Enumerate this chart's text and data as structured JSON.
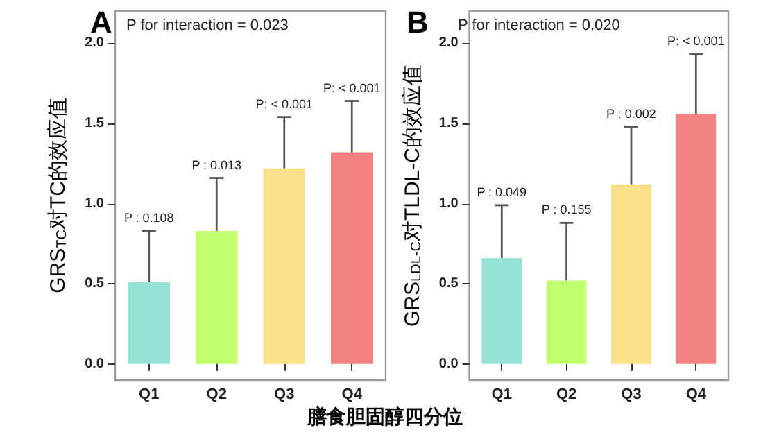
{
  "chart_data": [
    {
      "type": "bar",
      "title": "A",
      "ylabel": "GRS$_{TC}$对TC的效应值",
      "xlabel": "膳食胆固醇四分位",
      "categories": [
        "Q1",
        "Q2",
        "Q3",
        "Q4"
      ],
      "values": [
        0.51,
        0.83,
        1.22,
        1.32
      ],
      "colors": [
        "#95e1d3",
        "#c1ff6f",
        "#fbe08a",
        "#f38181"
      ],
      "errors": [
        [
          0.51,
          0.83
        ],
        [
          0.83,
          1.16
        ],
        [
          1.22,
          1.54
        ],
        [
          1.32,
          1.64
        ]
      ],
      "ylim": [
        -0.1,
        2.2
      ],
      "yticks": [
        {
          "value": 0,
          "label": "0.0"
        },
        {
          "value": 0.5,
          "label": "0.5"
        },
        {
          "value": 1,
          "label": "1.0"
        },
        {
          "value": 1.5,
          "label": "1.5"
        },
        {
          "value": 2,
          "label": "2.0"
        }
      ],
      "annotations": [
        "P for interaction = 0.023",
        {
          "text": "P : 0.108",
          "x": "Q1",
          "y": 0.83
        },
        {
          "text": "P : 0.013",
          "x": "Q2",
          "y": 1.16
        },
        {
          "text": "P: < 0.001",
          "x": "Q3",
          "y": 1.54
        },
        {
          "text": "P: < 0.001",
          "x": "Q4",
          "y": 1.64
        }
      ]
    },
    {
      "type": "bar",
      "title": "B",
      "ylabel": "GRS$_{LDL-C}$对TLDL-C的效应值",
      "categories": [
        "Q1",
        "Q2",
        "Q3",
        "Q4"
      ],
      "values": [
        0.66,
        0.52,
        1.12,
        1.56
      ],
      "colors": [
        "#95e1d3",
        "#c1ff6f",
        "#fbe08a",
        "#f38181"
      ],
      "errors": [
        [
          0.66,
          0.99
        ],
        [
          0.52,
          0.88
        ],
        [
          1.12,
          1.48
        ],
        [
          1.56,
          1.93
        ]
      ],
      "ylim": [
        -0.1,
        2.2
      ],
      "yticks": [
        {
          "value": 0,
          "label": "0.0"
        },
        {
          "value": 0.5,
          "label": "0.5"
        },
        {
          "value": 1,
          "label": "1.0"
        },
        {
          "value": 1.5,
          "label": "1.5"
        },
        {
          "value": 2,
          "label": "2.0"
        }
      ],
      "annotations": [
        "P for interaction = 0.020",
        {
          "text": "P : 0.049",
          "x": "Q1",
          "y": 0.99
        },
        {
          "text": "P : 0.155",
          "x": "Q2",
          "y": 0.88
        },
        {
          "text": "P : 0.002",
          "x": "Q3",
          "y": 1.48
        },
        {
          "text": "P: < 0.001",
          "x": "Q4",
          "y": 1.93
        }
      ]
    }
  ]
}
